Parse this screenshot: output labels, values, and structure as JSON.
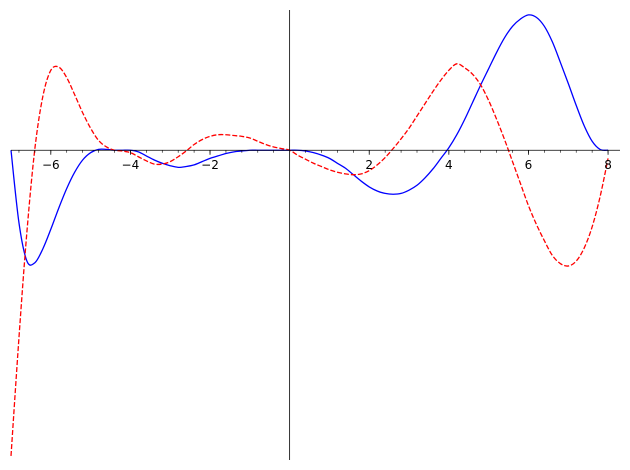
{
  "chart_data": {
    "type": "line",
    "title": "",
    "xlabel": "",
    "ylabel": "",
    "xlim": [
      -7,
      8.3
    ],
    "ylim": [
      -3.8,
      1.72
    ],
    "grid": false,
    "axes_style": "centered at origin",
    "x_ticks": [
      {
        "value": -6,
        "label": "−6"
      },
      {
        "value": -4,
        "label": "−4"
      },
      {
        "value": -2,
        "label": "−2"
      },
      {
        "value": 2,
        "label": "2"
      },
      {
        "value": 4,
        "label": "4"
      },
      {
        "value": 6,
        "label": "6"
      },
      {
        "value": 8,
        "label": "8"
      }
    ],
    "x_minor_step": 0.4,
    "series": [
      {
        "style": "solid",
        "color": "#0000ff",
        "x": [
          -7.0,
          -6.8,
          -6.6,
          -6.4,
          -6.2,
          -6.0,
          -5.8,
          -5.6,
          -5.4,
          -5.2,
          -5.0,
          -4.8,
          -4.6,
          -4.4,
          -4.2,
          -4.0,
          -3.8,
          -3.6,
          -3.4,
          -3.2,
          -3.0,
          -2.8,
          -2.6,
          -2.4,
          -2.2,
          -2.0,
          -1.8,
          -1.6,
          -1.4,
          -1.2,
          -1.0,
          -0.8,
          -0.6,
          -0.4,
          -0.2,
          0.0,
          0.2,
          0.4,
          0.6,
          0.8,
          1.0,
          1.2,
          1.4,
          1.6,
          1.8,
          2.0,
          2.2,
          2.4,
          2.6,
          2.8,
          3.0,
          3.2,
          3.4,
          3.6,
          3.8,
          4.0,
          4.2,
          4.4,
          4.6,
          4.8,
          5.0,
          5.2,
          5.4,
          5.6,
          5.8,
          6.0,
          6.2,
          6.4,
          6.6,
          6.8,
          7.0,
          7.2,
          7.4,
          7.6,
          7.8,
          8.0
        ],
        "y": [
          0.0,
          -0.89,
          -1.36,
          -1.38,
          -1.21,
          -0.97,
          -0.71,
          -0.47,
          -0.27,
          -0.12,
          -0.03,
          0.01,
          0.01,
          0.0,
          0.0,
          0.0,
          -0.02,
          -0.07,
          -0.12,
          -0.16,
          -0.19,
          -0.21,
          -0.2,
          -0.18,
          -0.14,
          -0.1,
          -0.07,
          -0.04,
          -0.02,
          -0.01,
          0.0,
          0.0,
          0.0,
          0.0,
          0.0,
          0.0,
          0.0,
          -0.01,
          -0.03,
          -0.06,
          -0.1,
          -0.16,
          -0.22,
          -0.3,
          -0.38,
          -0.45,
          -0.5,
          -0.53,
          -0.54,
          -0.53,
          -0.49,
          -0.43,
          -0.34,
          -0.23,
          -0.1,
          0.03,
          0.19,
          0.38,
          0.59,
          0.8,
          1.0,
          1.2,
          1.38,
          1.52,
          1.61,
          1.66,
          1.63,
          1.52,
          1.33,
          1.08,
          0.82,
          0.55,
          0.3,
          0.11,
          0.01,
          0.0
        ]
      },
      {
        "style": "dashed",
        "color": "#ff0000",
        "x": [
          -7.0,
          -6.8,
          -6.6,
          -6.4,
          -6.2,
          -6.0,
          -5.8,
          -5.6,
          -5.4,
          -5.2,
          -5.0,
          -4.8,
          -4.6,
          -4.4,
          -4.2,
          -4.0,
          -3.8,
          -3.6,
          -3.4,
          -3.2,
          -3.0,
          -2.8,
          -2.6,
          -2.4,
          -2.2,
          -2.0,
          -1.8,
          -1.6,
          -1.4,
          -1.2,
          -1.0,
          -0.8,
          -0.6,
          -0.4,
          -0.2,
          0.0,
          0.2,
          0.4,
          0.6,
          0.8,
          1.0,
          1.2,
          1.4,
          1.6,
          1.8,
          2.0,
          2.2,
          2.4,
          2.6,
          2.8,
          3.0,
          3.2,
          3.4,
          3.6,
          3.8,
          4.0,
          4.2,
          4.4,
          4.6,
          4.8,
          5.0,
          5.2,
          5.4,
          5.6,
          5.8,
          6.0,
          6.2,
          6.4,
          6.6,
          6.8,
          7.0,
          7.2,
          7.4,
          7.6,
          7.8,
          8.0
        ],
        "y": [
          -3.75,
          -2.3,
          -1.0,
          0.02,
          0.66,
          0.98,
          1.02,
          0.89,
          0.68,
          0.46,
          0.27,
          0.12,
          0.04,
          0.0,
          -0.01,
          -0.03,
          -0.08,
          -0.13,
          -0.17,
          -0.17,
          -0.14,
          -0.08,
          -0.01,
          0.07,
          0.13,
          0.17,
          0.19,
          0.19,
          0.18,
          0.17,
          0.15,
          0.11,
          0.07,
          0.04,
          0.02,
          0.0,
          -0.06,
          -0.11,
          -0.16,
          -0.2,
          -0.24,
          -0.27,
          -0.29,
          -0.3,
          -0.29,
          -0.25,
          -0.18,
          -0.09,
          0.02,
          0.14,
          0.27,
          0.42,
          0.57,
          0.72,
          0.86,
          0.98,
          1.06,
          1.01,
          0.93,
          0.8,
          0.61,
          0.38,
          0.13,
          -0.14,
          -0.41,
          -0.68,
          -0.91,
          -1.11,
          -1.29,
          -1.39,
          -1.42,
          -1.36,
          -1.2,
          -0.94,
          -0.57,
          -0.1
        ]
      }
    ]
  }
}
